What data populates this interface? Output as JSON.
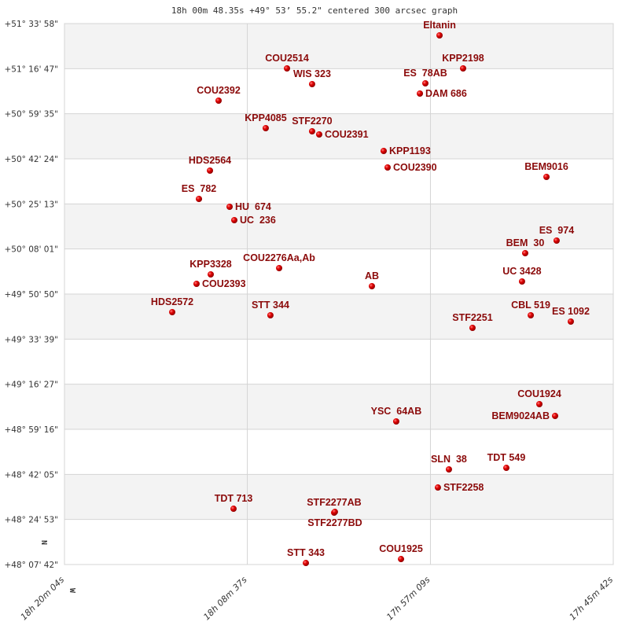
{
  "chart_data": {
    "type": "scatter",
    "title": "18h 00m 48.35s +49° 53’ 55.2\" centered 300 arcsec graph",
    "x_axis": {
      "units": "right ascension (hours)",
      "range": [
        18.33444,
        17.76167
      ],
      "ticks": [
        18.33444,
        18.14361,
        17.9525,
        17.76167
      ],
      "tick_labels": [
        "18h 20m 04s",
        "18h 08m 37s",
        "17h 57m 09s",
        "17h 45m 42s"
      ]
    },
    "y_axis": {
      "units": "declination (degrees)",
      "range": [
        48.12833,
        51.56611
      ],
      "tick_labels": [
        "+51° 33' 58\"",
        "+51° 16' 47\"",
        "+50° 59' 35\"",
        "+50° 42' 24\"",
        "+50° 25' 13\"",
        "+50° 08' 01\"",
        "+49° 50' 50\"",
        "+49° 33' 39\"",
        "+49° 16' 27\"",
        "+48° 59' 16\"",
        "+48° 42' 05\"",
        "+48° 24' 53\"",
        "+48° 07' 42\""
      ]
    },
    "grid": true,
    "alternating_bands": true,
    "compass": {
      "north": "N",
      "west": "W"
    },
    "colors": {
      "point": "#dd0000",
      "label": "#8b0a0a",
      "band": "#f3f3f3",
      "grid": "#d4d4d4"
    },
    "points": [
      {
        "name": "Eltanin",
        "ra": 17.943,
        "dec": 51.4912
      },
      {
        "name": "COU2514",
        "ra": 18.1022,
        "dec": 51.2813
      },
      {
        "name": "WIS 323",
        "ra": 18.076,
        "dec": 51.1813
      },
      {
        "name": "COU2392",
        "ra": 18.1736,
        "dec": 51.0764
      },
      {
        "name": "ES  78AB",
        "ra": 17.9578,
        "dec": 51.1863
      },
      {
        "name": "DAM 686",
        "ra": 17.9635,
        "dec": 51.1214
      },
      {
        "name": "KPP2198",
        "ra": 17.9184,
        "dec": 51.2813
      },
      {
        "name": "KPP4085",
        "ra": 18.1244,
        "dec": 50.9015
      },
      {
        "name": "STF2270",
        "ra": 18.076,
        "dec": 50.8815
      },
      {
        "name": "COU2391",
        "ra": 18.0686,
        "dec": 50.8616
      },
      {
        "name": "KPP1193",
        "ra": 18.0013,
        "dec": 50.7566
      },
      {
        "name": "COU2390",
        "ra": 17.9972,
        "dec": 50.6517
      },
      {
        "name": "HDS2564",
        "ra": 18.1826,
        "dec": 50.6317
      },
      {
        "name": "BEM9016",
        "ra": 17.8314,
        "dec": 50.5917
      },
      {
        "name": "ES  782",
        "ra": 18.1941,
        "dec": 50.4518
      },
      {
        "name": "HU  674",
        "ra": 18.1621,
        "dec": 50.4018
      },
      {
        "name": "UC  236",
        "ra": 18.1572,
        "dec": 50.3169
      },
      {
        "name": "ES  974",
        "ra": 17.8208,
        "dec": 50.187
      },
      {
        "name": "BEM  30",
        "ra": 17.8536,
        "dec": 50.107
      },
      {
        "name": "COU2276Aa,Ab",
        "ra": 18.1104,
        "dec": 50.0121
      },
      {
        "name": "KPP3328",
        "ra": 18.1818,
        "dec": 49.9721
      },
      {
        "name": "COU2393",
        "ra": 18.1966,
        "dec": 49.9122
      },
      {
        "name": "UC 3428",
        "ra": 17.8569,
        "dec": 49.9271
      },
      {
        "name": "AB",
        "ra": 18.0136,
        "dec": 49.8972
      },
      {
        "name": "HDS2572",
        "ra": 18.222,
        "dec": 49.7323
      },
      {
        "name": "STT 344",
        "ra": 18.1195,
        "dec": 49.7123
      },
      {
        "name": "CBL 519",
        "ra": 17.8478,
        "dec": 49.7123
      },
      {
        "name": "ES 1092",
        "ra": 17.806,
        "dec": 49.6723
      },
      {
        "name": "STF2251",
        "ra": 17.9086,
        "dec": 49.6323
      },
      {
        "name": "COU1924",
        "ra": 17.8388,
        "dec": 49.1476
      },
      {
        "name": "BEM9024AB",
        "ra": 17.8224,
        "dec": 49.0727
      },
      {
        "name": "YSC  64AB",
        "ra": 17.9882,
        "dec": 49.0377
      },
      {
        "name": "SLN  38",
        "ra": 17.9332,
        "dec": 48.7329
      },
      {
        "name": "TDT 549",
        "ra": 17.8733,
        "dec": 48.7428
      },
      {
        "name": "STF2258",
        "ra": 17.9447,
        "dec": 48.6179
      },
      {
        "name": "TDT 713",
        "ra": 18.158,
        "dec": 48.483
      },
      {
        "name": "STF2277AB",
        "ra": 18.053,
        "dec": 48.458
      },
      {
        "name": "STF2277BD",
        "ra": 18.0522,
        "dec": 48.463
      },
      {
        "name": "STT 343",
        "ra": 18.0825,
        "dec": 48.1382
      },
      {
        "name": "COU1925",
        "ra": 17.9832,
        "dec": 48.1632
      }
    ]
  }
}
